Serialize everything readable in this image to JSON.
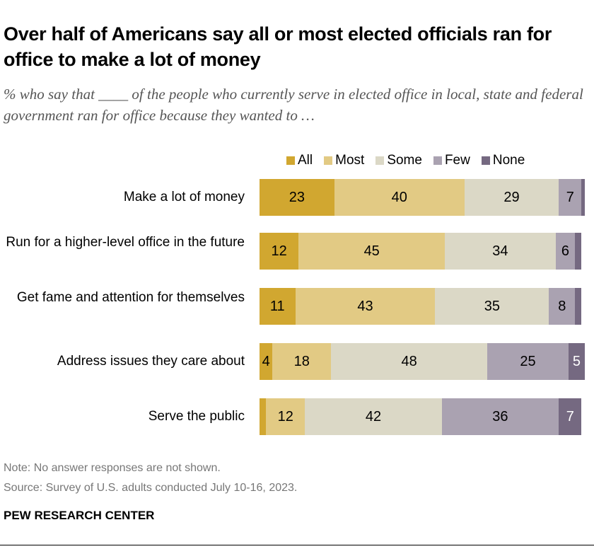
{
  "title": "Over half of Americans say all or most elected officials ran for office to make a lot of money",
  "subtitle": "% who say that ____ of the people who currently serve in elected office in local, state and federal government ran for office because they wanted to …",
  "note": "Note: No answer responses are not shown.",
  "source": "Source: Survey of U.S. adults conducted July 10-16, 2023.",
  "brand": "PEW RESEARCH CENTER",
  "chart_data": {
    "type": "bar",
    "orientation": "horizontal-stacked",
    "categories": [
      "Make a lot of money",
      "Run for a higher-level office in the future",
      "Get fame and attention for themselves",
      "Address issues they care about",
      "Serve the public"
    ],
    "series": [
      {
        "name": "All",
        "color": "#D1A730",
        "values": [
          23,
          12,
          11,
          4,
          2
        ],
        "labels": [
          "23",
          "12",
          "11",
          "4",
          ""
        ]
      },
      {
        "name": "Most",
        "color": "#E2CA84",
        "values": [
          40,
          45,
          43,
          18,
          12
        ],
        "labels": [
          "40",
          "45",
          "43",
          "18",
          "12"
        ]
      },
      {
        "name": "Some",
        "color": "#DBD8C6",
        "values": [
          29,
          34,
          35,
          48,
          42
        ],
        "labels": [
          "29",
          "34",
          "35",
          "48",
          "42"
        ]
      },
      {
        "name": "Few",
        "color": "#AAA2B1",
        "values": [
          7,
          6,
          8,
          25,
          36
        ],
        "labels": [
          "7",
          "6",
          "8",
          "25",
          "36"
        ]
      },
      {
        "name": "None",
        "color": "#756981",
        "values": [
          1,
          2,
          2,
          5,
          7
        ],
        "labels": [
          "",
          "",
          "",
          "5",
          "7"
        ]
      }
    ],
    "legend": "top",
    "xlim": [
      0,
      100
    ],
    "grid": false
  }
}
